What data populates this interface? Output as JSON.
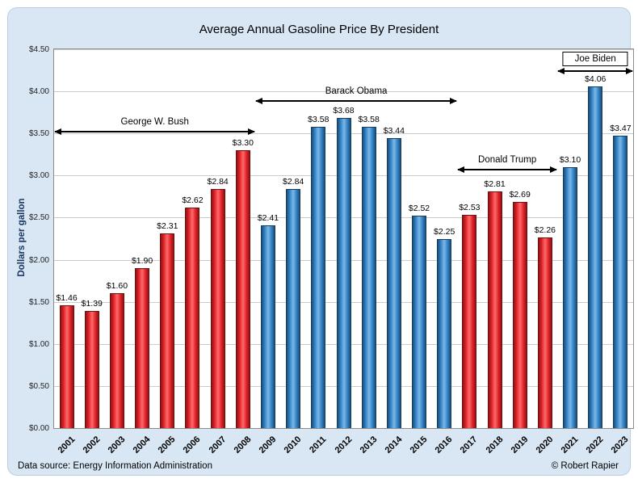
{
  "footer": {
    "source": "Data source: Energy Information Administration",
    "credit": "© Robert Rapier"
  },
  "chart_data": {
    "type": "bar",
    "title": "Average Annual Gasoline Price By President",
    "xlabel": "",
    "ylabel": "Dollars per gallon",
    "ylim": [
      0,
      4.5
    ],
    "ytick_labels": [
      "$0.00",
      "$0.50",
      "$1.00",
      "$1.50",
      "$2.00",
      "$2.50",
      "$3.00",
      "$3.50",
      "$4.00",
      "$4.50"
    ],
    "grid": true,
    "legend": null,
    "categories": [
      "2001",
      "2002",
      "2003",
      "2004",
      "2005",
      "2006",
      "2007",
      "2008",
      "2009",
      "2010",
      "2011",
      "2012",
      "2013",
      "2014",
      "2015",
      "2016",
      "2017",
      "2018",
      "2019",
      "2020",
      "2021",
      "2022",
      "2023"
    ],
    "values": [
      1.46,
      1.39,
      1.6,
      1.9,
      2.31,
      2.62,
      2.84,
      3.3,
      2.41,
      2.84,
      3.58,
      3.68,
      3.58,
      3.44,
      2.52,
      2.25,
      2.53,
      2.81,
      2.69,
      2.26,
      3.1,
      4.06,
      3.47
    ],
    "value_labels": [
      "$1.46",
      "$1.39",
      "$1.60",
      "$1.90",
      "$2.31",
      "$2.62",
      "$2.84",
      "$3.30",
      "$2.41",
      "$2.84",
      "$3.58",
      "$3.68",
      "$3.58",
      "$3.44",
      "$2.52",
      "$2.25",
      "$2.53",
      "$2.81",
      "$2.69",
      "$2.26",
      "$3.10",
      "$4.06",
      "$3.47"
    ],
    "bar_parties": [
      "R",
      "R",
      "R",
      "R",
      "R",
      "R",
      "R",
      "R",
      "D",
      "D",
      "D",
      "D",
      "D",
      "D",
      "D",
      "D",
      "R",
      "R",
      "R",
      "R",
      "D",
      "D",
      "D"
    ],
    "party_colors": {
      "R": "#dd1f26",
      "D": "#2f7ec1"
    },
    "annotations": [
      {
        "label": "George W. Bush",
        "start_index": 0,
        "end_index": 7,
        "arrow_y": 3.53,
        "boxed": false
      },
      {
        "label": "Barack Obama",
        "start_index": 8,
        "end_index": 15,
        "arrow_y": 3.9,
        "boxed": false
      },
      {
        "label": "Donald Trump",
        "start_index": 16,
        "end_index": 19,
        "arrow_y": 3.08,
        "boxed": false
      },
      {
        "label": "Joe Biden",
        "start_index": 20,
        "end_index": 22,
        "arrow_y": 4.25,
        "boxed": true
      }
    ]
  }
}
